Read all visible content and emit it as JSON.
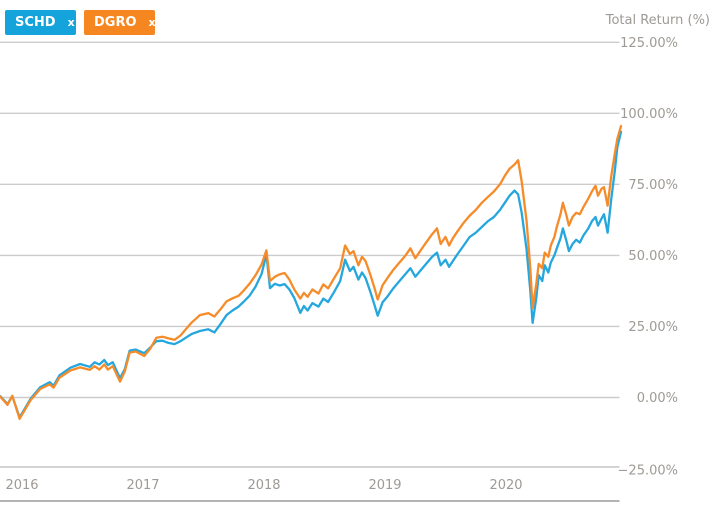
{
  "legend": {
    "tags": [
      {
        "symbol": "SCHD",
        "close_label": "x",
        "color": "#14a3da"
      },
      {
        "symbol": "DGRO",
        "close_label": "x",
        "color": "#f6861f"
      }
    ]
  },
  "chart_data": {
    "type": "line",
    "title": "Total Return (%)",
    "grid": "horizontal",
    "legend_position": "top-left",
    "x_axis": {
      "ticks": [
        {
          "value": 2016,
          "label": "2016"
        },
        {
          "value": 2017,
          "label": "2017"
        },
        {
          "value": 2018,
          "label": "2018"
        },
        {
          "value": 2019,
          "label": "2019"
        },
        {
          "value": 2020,
          "label": "2020"
        }
      ]
    },
    "y_axis": {
      "unit": "%",
      "range": [
        -25,
        125
      ],
      "ticks": [
        {
          "value": 125,
          "label": "125.00%"
        },
        {
          "value": 100,
          "label": "100.00%"
        },
        {
          "value": 75,
          "label": "75.00%"
        },
        {
          "value": 50,
          "label": "50.00%"
        },
        {
          "value": 25,
          "label": "25.00%"
        },
        {
          "value": 0,
          "label": "0.00%"
        },
        {
          "value": -25,
          "label": "−25.00%"
        }
      ]
    },
    "x": [
      2015.82,
      2015.88,
      2015.92,
      2015.98,
      2016.07,
      2016.15,
      2016.23,
      2016.26,
      2016.31,
      2016.4,
      2016.48,
      2016.56,
      2016.6,
      2016.64,
      2016.68,
      2016.71,
      2016.75,
      2016.81,
      2016.85,
      2016.89,
      2016.94,
      2017.01,
      2017.06,
      2017.11,
      2017.16,
      2017.21,
      2017.26,
      2017.31,
      2017.36,
      2017.4,
      2017.47,
      2017.54,
      2017.59,
      2017.64,
      2017.69,
      2017.74,
      2017.79,
      2017.83,
      2017.88,
      2017.93,
      2017.98,
      2018.02,
      2018.05,
      2018.09,
      2018.13,
      2018.17,
      2018.21,
      2018.25,
      2018.3,
      2018.33,
      2018.36,
      2018.4,
      2018.45,
      2018.49,
      2018.53,
      2018.58,
      2018.63,
      2018.67,
      2018.71,
      2018.74,
      2018.78,
      2018.81,
      2018.84,
      2018.88,
      2018.91,
      2018.94,
      2018.98,
      2019.02,
      2019.07,
      2019.12,
      2019.17,
      2019.21,
      2019.25,
      2019.29,
      2019.34,
      2019.39,
      2019.43,
      2019.46,
      2019.5,
      2019.53,
      2019.56,
      2019.6,
      2019.65,
      2019.7,
      2019.75,
      2019.8,
      2019.85,
      2019.9,
      2019.95,
      2019.99,
      2020.03,
      2020.07,
      2020.1,
      2020.13,
      2020.17,
      2020.2,
      2020.22,
      2020.25,
      2020.27,
      2020.3,
      2020.32,
      2020.35,
      2020.37,
      2020.4,
      2020.42,
      2020.45,
      2020.47,
      2020.5,
      2020.52,
      2020.55,
      2020.58,
      2020.61,
      2020.64,
      2020.68,
      2020.71,
      2020.74,
      2020.76,
      2020.79,
      2020.81,
      2020.84,
      2020.87,
      2020.9,
      2020.92,
      2020.95
    ],
    "series": [
      {
        "name": "SCHD",
        "color": "#25a7de",
        "values": [
          0.5,
          -2.3,
          0.5,
          -7.0,
          -0.5,
          3.6,
          5.4,
          4.1,
          7.8,
          10.5,
          11.8,
          10.8,
          12.4,
          11.6,
          13.2,
          11.4,
          12.4,
          6.8,
          10,
          16.5,
          16.9,
          15.6,
          17.6,
          19.8,
          20,
          19.2,
          18.8,
          19.8,
          21.2,
          22.3,
          23.4,
          24,
          22.9,
          25.8,
          29,
          30.6,
          32,
          33.6,
          35.8,
          39,
          43.5,
          50.3,
          38.5,
          40,
          39.4,
          39.9,
          38,
          35,
          29.8,
          32.2,
          30.6,
          33.2,
          32,
          34.8,
          33.6,
          37.2,
          41,
          48.5,
          44.5,
          46,
          41.5,
          44,
          42,
          37,
          33,
          28.8,
          33.5,
          35.5,
          38.5,
          41,
          43.5,
          45.5,
          42.5,
          44.5,
          47,
          49.5,
          51,
          46.5,
          48.5,
          46,
          48,
          50.5,
          53.5,
          56.5,
          58,
          60,
          62,
          63.5,
          66,
          68.5,
          71,
          72.8,
          71.5,
          65,
          52,
          38,
          26.3,
          35,
          43,
          41,
          46.5,
          44,
          47.5,
          50,
          52.5,
          56,
          59.5,
          55,
          51.5,
          54,
          55.5,
          54.5,
          57,
          59.5,
          62,
          63.5,
          60.5,
          63,
          64.5,
          58,
          70,
          80,
          88,
          93.5
        ]
      },
      {
        "name": "DGRO",
        "color": "#f68b2a",
        "values": [
          0.3,
          -2.6,
          0.6,
          -7.5,
          -1,
          3,
          4.6,
          3.5,
          7,
          9.5,
          10.6,
          9.7,
          11,
          9.8,
          11.6,
          9.8,
          11,
          5.6,
          9.2,
          15.8,
          16.2,
          14.6,
          17.2,
          21,
          21.4,
          20.8,
          20.3,
          21.8,
          24.3,
          26.3,
          29,
          29.7,
          28.5,
          31,
          33.8,
          34.9,
          35.8,
          37.5,
          40,
          43,
          46.8,
          51.8,
          41,
          42.5,
          43.3,
          43.8,
          41.5,
          38,
          34.8,
          36.8,
          35.4,
          38,
          36.6,
          39.8,
          38.4,
          42,
          45.5,
          53.5,
          50.5,
          51.5,
          46.5,
          49.5,
          48,
          43,
          39,
          34.5,
          39.5,
          42,
          45,
          47.5,
          50,
          52.5,
          49,
          51.5,
          54.5,
          57.5,
          59.5,
          54,
          56.5,
          53.5,
          56,
          58.5,
          61.5,
          64,
          66,
          68.5,
          70.5,
          72.5,
          75,
          78,
          80.5,
          82,
          83.5,
          76,
          62,
          46,
          31.5,
          40,
          47,
          45.5,
          51,
          49.5,
          53.5,
          56.5,
          60,
          64.5,
          68.5,
          64,
          60.5,
          63.5,
          65,
          64.5,
          67,
          70,
          72.5,
          74.5,
          71,
          73.5,
          74,
          67.5,
          78,
          86,
          91,
          95.5
        ]
      }
    ]
  }
}
